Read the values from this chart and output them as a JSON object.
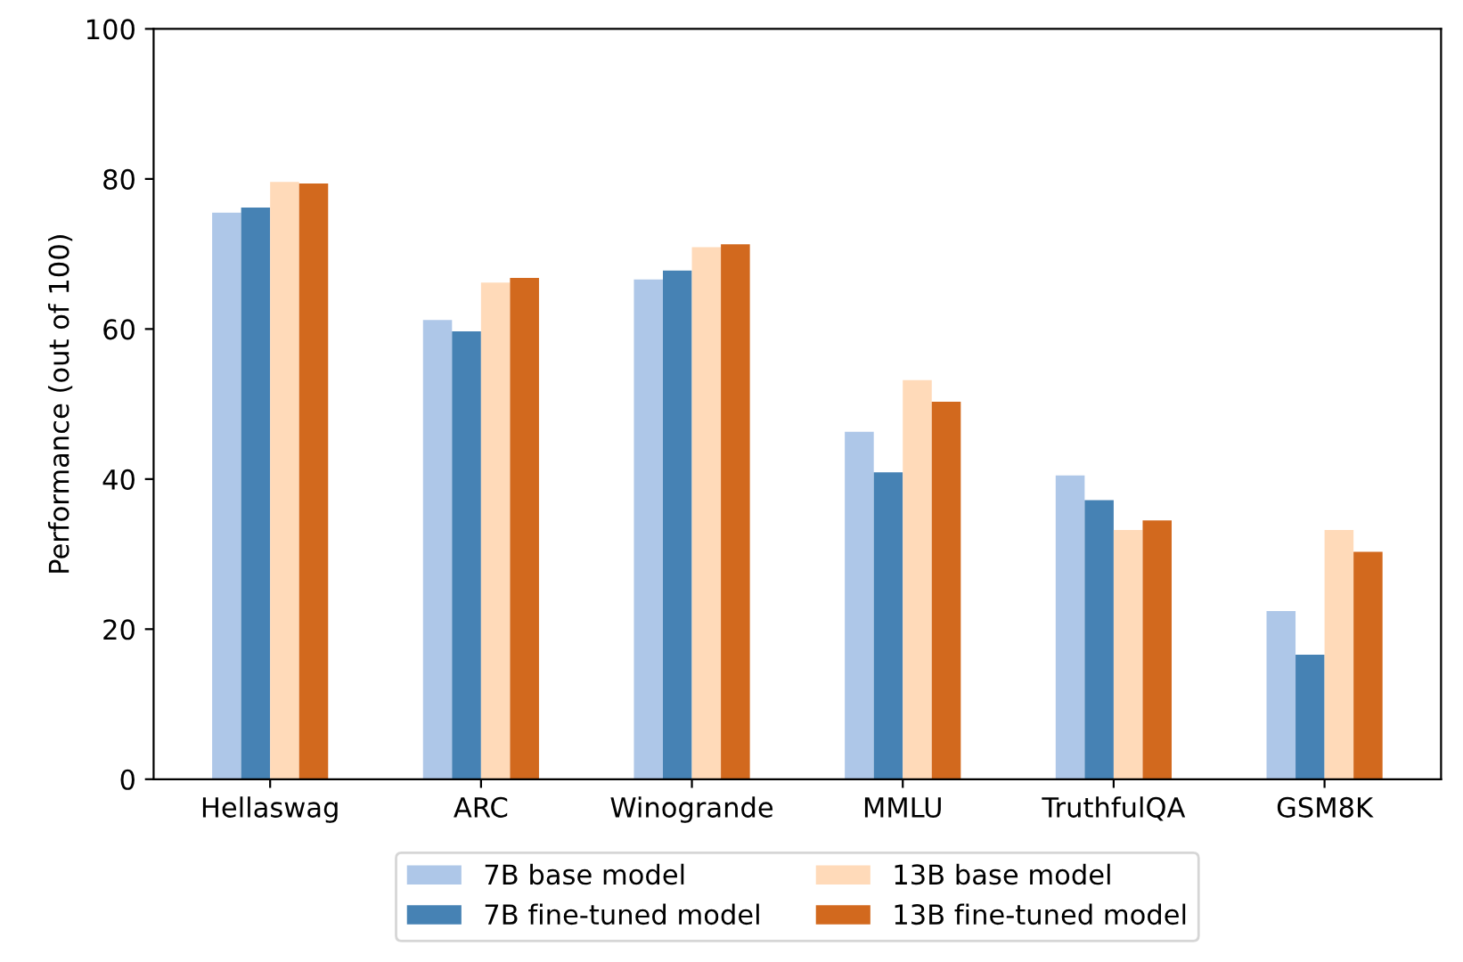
{
  "chart_data": {
    "type": "bar",
    "ylabel": "Performance (out of 100)",
    "categories": [
      "Hellaswag",
      "ARC",
      "Winogrande",
      "MMLU",
      "TruthfulQA",
      "GSM8K"
    ],
    "series": [
      {
        "name": "7B base model",
        "color": "#aec7e8",
        "values": [
          75.5,
          61.2,
          66.6,
          46.3,
          40.5,
          22.4
        ]
      },
      {
        "name": "7B fine-tuned model",
        "color": "#4682b4",
        "values": [
          76.2,
          59.7,
          67.8,
          40.9,
          37.2,
          16.6
        ]
      },
      {
        "name": "13B base model",
        "color": "#ffdab9",
        "values": [
          79.6,
          66.2,
          70.9,
          53.2,
          33.2,
          33.2
        ]
      },
      {
        "name": "13B fine-tuned model",
        "color": "#d2691e",
        "values": [
          79.4,
          66.8,
          71.3,
          50.3,
          34.5,
          30.3
        ]
      }
    ],
    "ylim": [
      0,
      100
    ],
    "yticks": [
      0,
      20,
      40,
      60,
      80,
      100
    ],
    "grid": false,
    "legend": "bottom"
  }
}
